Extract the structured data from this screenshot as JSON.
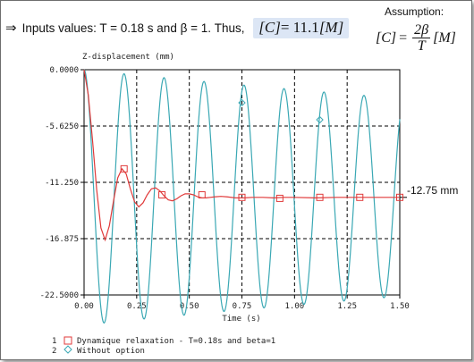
{
  "header": {
    "arrow": "⇒",
    "text": "Inputs values: T = 0.18 s and β = 1. Thus,",
    "formula_lhs": "[C]",
    "formula_eq": "= 11.1",
    "formula_unit": "[M]"
  },
  "assumption": {
    "label": "Assumption:",
    "lhs": "[C]",
    "eq": "=",
    "numerator": "2β",
    "denominator": "T",
    "unit": "[M]"
  },
  "annotation": {
    "text": "-12.75 mm"
  },
  "chart_data": {
    "type": "line",
    "title": "",
    "ylabel": "Z-displacement (mm)",
    "xlabel": "Time (s)",
    "xlim": [
      0,
      1.5
    ],
    "ylim": [
      -22.5,
      0
    ],
    "x_ticks": [
      "0.00",
      "0.25",
      "0.50",
      "0.75",
      "1.00",
      "1.25",
      "1.50"
    ],
    "y_ticks": [
      "0.0000",
      "-5.6250",
      "-11.250",
      "-16.875",
      "-22.5000"
    ],
    "grid": true,
    "legend_position": "bottom-left",
    "series": [
      {
        "index": "1",
        "name": "Dynamique relaxation - T=0.18s and beta=1",
        "color": "#e03a3a",
        "marker": "square",
        "x": [
          0,
          0.02,
          0.04,
          0.06,
          0.08,
          0.1,
          0.12,
          0.14,
          0.16,
          0.18,
          0.2,
          0.22,
          0.24,
          0.26,
          0.28,
          0.3,
          0.32,
          0.34,
          0.36,
          0.38,
          0.4,
          0.42,
          0.44,
          0.46,
          0.48,
          0.5,
          0.52,
          0.54,
          0.56,
          0.58,
          0.6,
          0.62,
          0.65,
          0.68,
          0.72,
          0.76,
          0.8,
          0.85,
          0.9,
          0.95,
          1.0,
          1.1,
          1.2,
          1.3,
          1.4,
          1.5
        ],
        "values": [
          0,
          -2.5,
          -7.0,
          -12.0,
          -15.8,
          -17.0,
          -15.6,
          -13.1,
          -10.8,
          -9.9,
          -10.4,
          -11.9,
          -13.2,
          -13.7,
          -13.3,
          -12.5,
          -11.9,
          -11.8,
          -12.1,
          -12.6,
          -13.0,
          -13.1,
          -12.9,
          -12.6,
          -12.4,
          -12.4,
          -12.5,
          -12.7,
          -12.8,
          -12.8,
          -12.75,
          -12.7,
          -12.65,
          -12.7,
          -12.8,
          -12.8,
          -12.75,
          -12.75,
          -12.8,
          -12.75,
          -12.75,
          -12.8,
          -12.75,
          -12.75,
          -12.75,
          -12.75
        ],
        "marker_x": [
          0.19,
          0.37,
          0.56,
          0.75,
          0.93,
          1.12,
          1.31,
          1.5
        ],
        "marker_values": [
          -9.9,
          -12.5,
          -12.5,
          -12.75,
          -12.85,
          -12.75,
          -12.75,
          -12.75
        ]
      },
      {
        "index": "2",
        "name": "Without option",
        "color": "#3aa8b4",
        "marker": "diamond",
        "damped_oscillation": {
          "equilibrium": -12.75,
          "amplitude": 12.75,
          "period": 0.19,
          "amplitude_at_end": 9.9
        },
        "marker_x": [
          0.75,
          1.12
        ],
        "marker_values": [
          -3.3,
          -5.0
        ]
      }
    ]
  }
}
